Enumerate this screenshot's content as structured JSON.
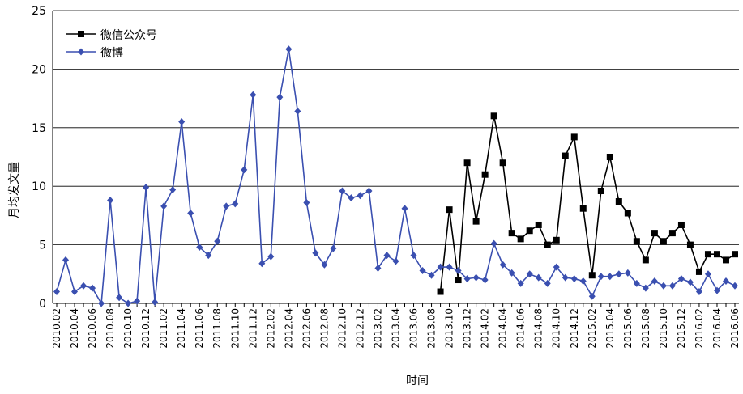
{
  "chart_data": {
    "type": "line",
    "categories": [
      "2010.02",
      null,
      "2010.04",
      null,
      "2010.06",
      null,
      "2010.08",
      null,
      "2010.10",
      null,
      "2010.12",
      null,
      "2011.02",
      null,
      "2011.04",
      null,
      "2011.06",
      null,
      "2011.08",
      null,
      "2011.10",
      null,
      "2011.12",
      null,
      "2012.02",
      null,
      "2012.04",
      null,
      "2012.06",
      null,
      "2012.08",
      null,
      "2012.10",
      null,
      "2012.12",
      null,
      "2013.02",
      null,
      "2013.04",
      null,
      "2013.06",
      null,
      "2013.08",
      null,
      "2013.10",
      null,
      "2013.12",
      null,
      "2014.02",
      null,
      "2014.04",
      null,
      "2014.06",
      null,
      "2014.08",
      null,
      "2014.10",
      null,
      "2014.12",
      null,
      "2015.02",
      null,
      "2015.04",
      null,
      "2015.06",
      null,
      "2015.08",
      null,
      "2015.10",
      null,
      "2015.12",
      null,
      "2016.02",
      null,
      "2016.04",
      null,
      "2016.06"
    ],
    "series": [
      {
        "name": "微信公众号",
        "color": "#000000",
        "marker": "square",
        "values": [
          null,
          null,
          null,
          null,
          null,
          null,
          null,
          null,
          null,
          null,
          null,
          null,
          null,
          null,
          null,
          null,
          null,
          null,
          null,
          null,
          null,
          null,
          null,
          null,
          null,
          null,
          null,
          null,
          null,
          null,
          null,
          null,
          null,
          null,
          null,
          null,
          null,
          null,
          null,
          null,
          null,
          null,
          null,
          1.0,
          8.0,
          2.0,
          12.0,
          7.0,
          11.0,
          16.0,
          12.0,
          6.0,
          5.5,
          6.2,
          6.7,
          5.0,
          5.4,
          12.6,
          14.2,
          8.1,
          2.4,
          9.6,
          12.5,
          8.7,
          7.7,
          5.3,
          3.7,
          6.0,
          5.3,
          6.0,
          6.7,
          5.0,
          2.7,
          4.2,
          4.2,
          3.7,
          4.2
        ]
      },
      {
        "name": "微博",
        "color": "#3a4fb0",
        "marker": "diamond",
        "values": [
          1.0,
          3.7,
          1.0,
          1.5,
          1.3,
          0,
          8.8,
          0.5,
          0,
          0.2,
          9.9,
          0.1,
          8.3,
          9.7,
          15.5,
          7.7,
          4.8,
          4.1,
          5.3,
          8.3,
          8.5,
          11.4,
          17.8,
          3.4,
          4.0,
          17.6,
          21.7,
          16.4,
          8.6,
          4.3,
          3.3,
          4.7,
          9.6,
          9.0,
          9.2,
          9.6,
          3.0,
          4.1,
          3.6,
          8.1,
          4.1,
          2.8,
          2.4,
          3.1,
          3.1,
          2.8,
          2.1,
          2.2,
          2.0,
          5.1,
          3.3,
          2.6,
          1.7,
          2.5,
          2.2,
          1.7,
          3.1,
          2.2,
          2.1,
          1.9,
          0.6,
          2.3,
          2.3,
          2.5,
          2.6,
          1.7,
          1.3,
          1.9,
          1.5,
          1.5,
          2.1,
          1.8,
          1.0,
          2.5,
          1.1,
          1.9,
          1.5
        ]
      }
    ],
    "x_label": "时间",
    "y_label": "月均发文量",
    "ylim": [
      0,
      25
    ],
    "yticks": [
      0,
      5,
      10,
      15,
      20,
      25
    ],
    "grid": true,
    "legend": "top-left"
  }
}
